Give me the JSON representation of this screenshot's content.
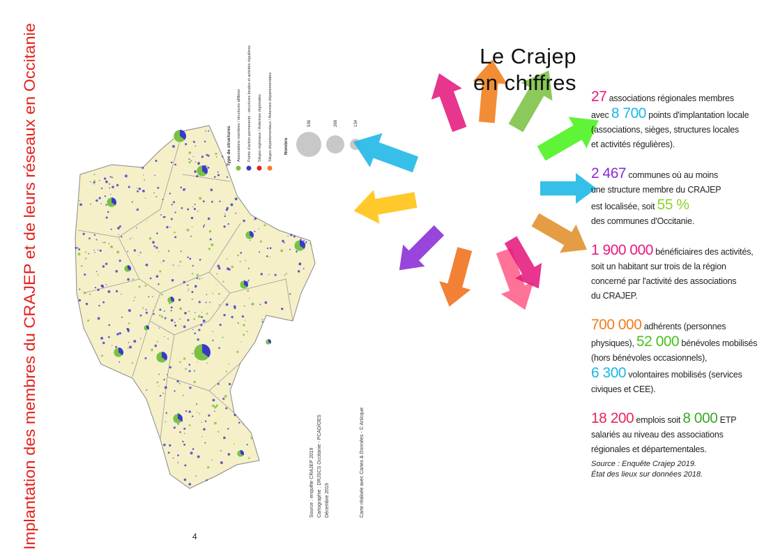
{
  "page_title": "Implantation des membres du CRAJEP et de leurs réseaux en Occitanie",
  "map": {
    "legend": {
      "title": "Type de structures",
      "items": [
        {
          "label": "Associations membres / structures affiliées",
          "color": "#7ac143"
        },
        {
          "label": "Points d'action permanents - structures locales et activités régulières",
          "color": "#3a3ac8"
        },
        {
          "label": "Sièges régionaux / Antennes régionales",
          "color": "#e2211c"
        },
        {
          "label": "Sièges départementaux / Antennes départementales",
          "color": "#f07d1a"
        }
      ],
      "size_title": "Nombre",
      "sizes": [
        536,
        268,
        134
      ]
    },
    "credits": [
      "Source : enquête CRAJEP 2019",
      "Cartographie : DRJSCS Occitanie - PCAD/OES",
      "Décembre 2019"
    ],
    "tool": "Carte réalisée avec Cartes & Données - © Articque"
  },
  "page_number": 4,
  "heading": [
    "Le Crajep",
    "en chiffres"
  ],
  "stats": [
    [
      [
        {
          "text": "27",
          "color": "#e5197e"
        },
        {
          "text": " associations régionales membres"
        }
      ],
      [
        {
          "text": "avec "
        },
        {
          "text": "8 700",
          "color": "#1ab7e6"
        },
        {
          "text": " points d'implantation locale"
        }
      ],
      [
        {
          "text": "(associations, sièges, structures locales"
        }
      ],
      [
        {
          "text": "et activités régulières)."
        }
      ]
    ],
    [
      [
        {
          "text": "2 467",
          "color": "#8a2bd6"
        },
        {
          "text": " communes où au moins"
        }
      ],
      [
        {
          "text": "une structure membre du CRAJEP"
        }
      ],
      [
        {
          "text": "est localisée, soit "
        },
        {
          "text": "55 %",
          "color": "#8fd12a"
        }
      ],
      [
        {
          "text": "des communes d'Occitanie."
        }
      ]
    ],
    [
      [
        {
          "text": "1 900 000",
          "color": "#e5197e"
        },
        {
          "text": " bénéficiaires des activités,"
        }
      ],
      [
        {
          "text": "soit un habitant sur trois de la région"
        }
      ],
      [
        {
          "text": "concerné par l'activité des associations"
        }
      ],
      [
        {
          "text": "du CRAJEP."
        }
      ]
    ],
    [
      [
        {
          "text": "700 000",
          "color": "#f07d1a"
        },
        {
          "text": " adhérents (personnes"
        }
      ],
      [
        {
          "text": "physiques), "
        },
        {
          "text": "52 000",
          "color": "#49c21b"
        },
        {
          "text": " bénévoles mobilisés"
        }
      ],
      [
        {
          "text": "(hors bénévoles occasionnels),"
        }
      ],
      [
        {
          "text": "6 300",
          "color": "#1ab7e6"
        },
        {
          "text": " volontaires mobilisés (services"
        }
      ],
      [
        {
          "text": "civiques et CEE)."
        }
      ]
    ],
    [
      [
        {
          "text": "18 200",
          "color": "#e8265a"
        },
        {
          "text": " emplois soit "
        },
        {
          "text": "8 000",
          "color": "#3aa827"
        },
        {
          "text": " ETP"
        }
      ],
      [
        {
          "text": "salariés au niveau des associations"
        }
      ],
      [
        {
          "text": "régionales et départementales."
        }
      ]
    ]
  ],
  "source": [
    "Source : Enquête Crajep 2019.",
    "État des lieux sur données 2018."
  ]
}
